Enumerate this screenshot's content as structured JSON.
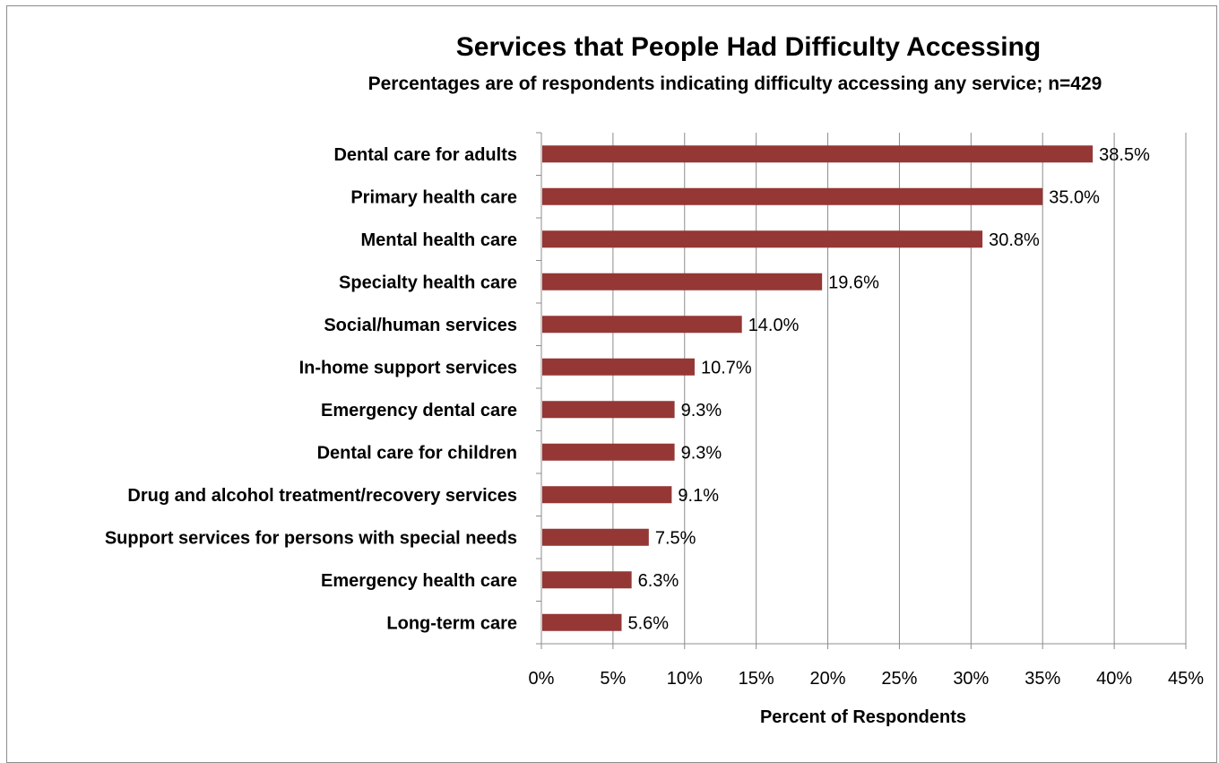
{
  "chart_data": {
    "type": "bar",
    "orientation": "horizontal",
    "title": "Services that People Had Difficulty Accessing",
    "subtitle": "Percentages are of respondents indicating difficulty accessing any service; n=429",
    "xlabel": "Percent of Respondents",
    "ylabel": "",
    "xlim": [
      0,
      45
    ],
    "x_ticks": [
      "0%",
      "5%",
      "10%",
      "15%",
      "20%",
      "25%",
      "30%",
      "35%",
      "40%",
      "45%"
    ],
    "x_tick_values": [
      0,
      5,
      10,
      15,
      20,
      25,
      30,
      35,
      40,
      45
    ],
    "grid": "vertical",
    "legend": "none",
    "bar_color": "#953735",
    "categories": [
      "Dental care for adults",
      "Primary health care",
      "Mental health care",
      "Specialty health care",
      "Social/human services",
      "In-home support services",
      "Emergency dental care",
      "Dental care for children",
      "Drug and alcohol treatment/recovery services",
      "Support services for persons with special needs",
      "Emergency health care",
      "Long-term care"
    ],
    "values": [
      38.5,
      35.0,
      30.8,
      19.6,
      14.0,
      10.7,
      9.3,
      9.3,
      9.1,
      7.5,
      6.3,
      5.6
    ],
    "value_labels": [
      "38.5%",
      "35.0%",
      "30.8%",
      "19.6%",
      "14.0%",
      "10.7%",
      "9.3%",
      "9.3%",
      "9.1%",
      "7.5%",
      "6.3%",
      "5.6%"
    ]
  }
}
